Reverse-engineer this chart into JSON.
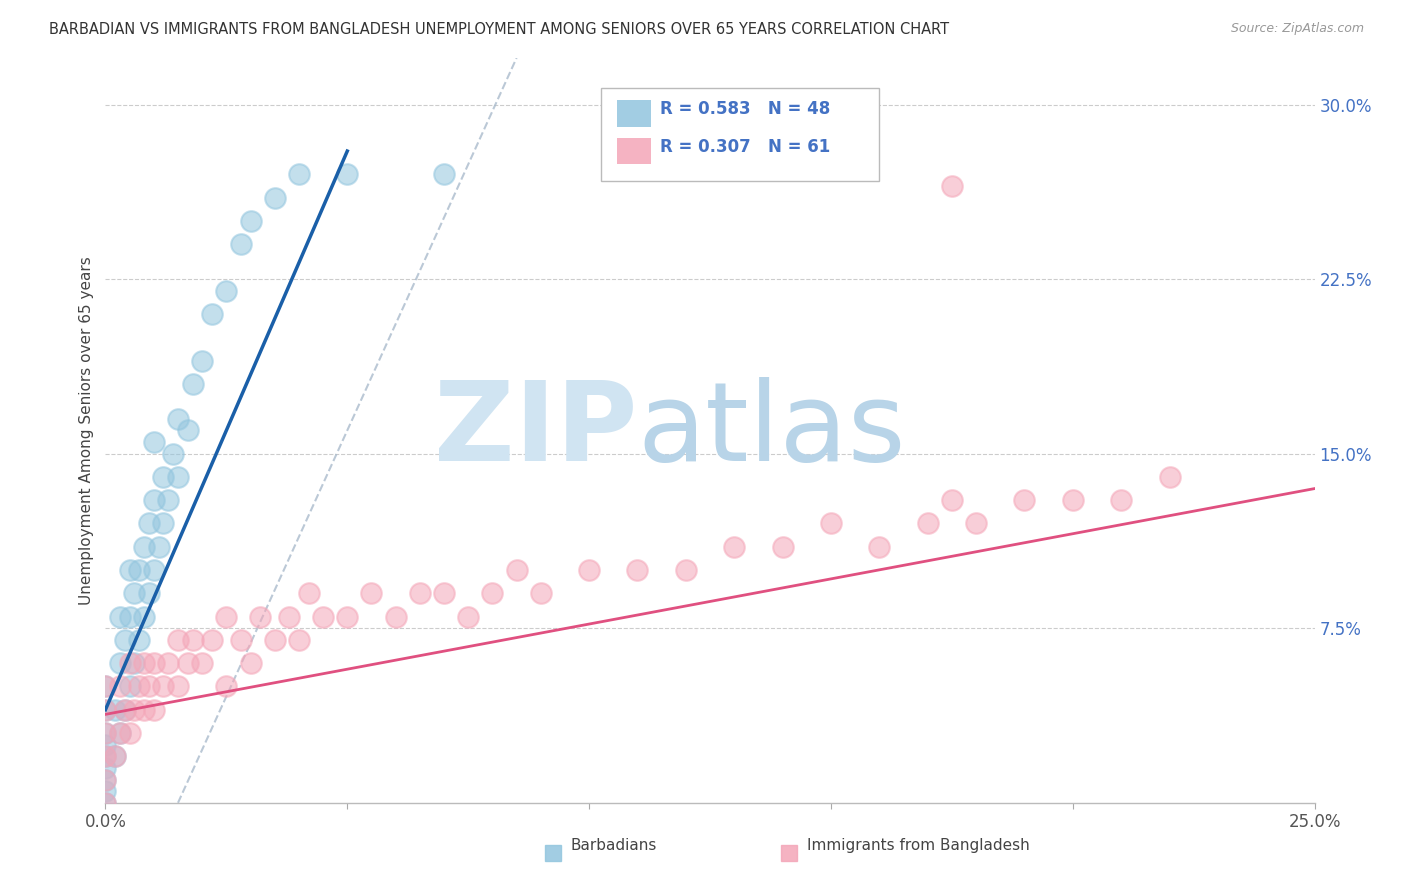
{
  "title": "BARBADIAN VS IMMIGRANTS FROM BANGLADESH UNEMPLOYMENT AMONG SENIORS OVER 65 YEARS CORRELATION CHART",
  "source": "Source: ZipAtlas.com",
  "ylabel": "Unemployment Among Seniors over 65 years",
  "xlim": [
    0.0,
    0.25
  ],
  "ylim": [
    0.0,
    0.32
  ],
  "color_blue": "#92c5de",
  "color_pink": "#f4a6b8",
  "line_blue": "#1a5fa8",
  "line_pink": "#e05080",
  "dash_color": "#aabbcc",
  "watermark_zip": "ZIP",
  "watermark_atlas": "atlas",
  "barbadian_x": [
    0.0,
    0.0,
    0.0,
    0.0,
    0.0,
    0.0,
    0.0,
    0.0,
    0.0,
    0.002,
    0.002,
    0.003,
    0.003,
    0.003,
    0.004,
    0.004,
    0.005,
    0.005,
    0.005,
    0.006,
    0.006,
    0.007,
    0.007,
    0.008,
    0.008,
    0.009,
    0.009,
    0.01,
    0.01,
    0.01,
    0.011,
    0.012,
    0.012,
    0.013,
    0.014,
    0.015,
    0.015,
    0.017,
    0.018,
    0.02,
    0.022,
    0.025,
    0.028,
    0.03,
    0.035,
    0.04,
    0.05,
    0.07
  ],
  "barbadian_y": [
    0.0,
    0.005,
    0.01,
    0.015,
    0.02,
    0.025,
    0.03,
    0.04,
    0.05,
    0.02,
    0.04,
    0.03,
    0.06,
    0.08,
    0.04,
    0.07,
    0.05,
    0.08,
    0.1,
    0.06,
    0.09,
    0.07,
    0.1,
    0.08,
    0.11,
    0.09,
    0.12,
    0.1,
    0.13,
    0.155,
    0.11,
    0.12,
    0.14,
    0.13,
    0.15,
    0.14,
    0.165,
    0.16,
    0.18,
    0.19,
    0.21,
    0.22,
    0.24,
    0.25,
    0.26,
    0.27,
    0.27,
    0.27
  ],
  "bangladesh_x": [
    0.0,
    0.0,
    0.0,
    0.0,
    0.0,
    0.0,
    0.002,
    0.003,
    0.003,
    0.004,
    0.005,
    0.005,
    0.006,
    0.007,
    0.008,
    0.008,
    0.009,
    0.01,
    0.01,
    0.012,
    0.013,
    0.015,
    0.015,
    0.017,
    0.018,
    0.02,
    0.022,
    0.025,
    0.025,
    0.028,
    0.03,
    0.032,
    0.035,
    0.038,
    0.04,
    0.042,
    0.045,
    0.05,
    0.055,
    0.06,
    0.065,
    0.07,
    0.075,
    0.08,
    0.085,
    0.09,
    0.1,
    0.11,
    0.12,
    0.13,
    0.14,
    0.15,
    0.16,
    0.17,
    0.175,
    0.18,
    0.19,
    0.2,
    0.21,
    0.22,
    0.175
  ],
  "bangladesh_y": [
    0.0,
    0.01,
    0.02,
    0.03,
    0.04,
    0.05,
    0.02,
    0.03,
    0.05,
    0.04,
    0.03,
    0.06,
    0.04,
    0.05,
    0.04,
    0.06,
    0.05,
    0.04,
    0.06,
    0.05,
    0.06,
    0.05,
    0.07,
    0.06,
    0.07,
    0.06,
    0.07,
    0.05,
    0.08,
    0.07,
    0.06,
    0.08,
    0.07,
    0.08,
    0.07,
    0.09,
    0.08,
    0.08,
    0.09,
    0.08,
    0.09,
    0.09,
    0.08,
    0.09,
    0.1,
    0.09,
    0.1,
    0.1,
    0.1,
    0.11,
    0.11,
    0.12,
    0.11,
    0.12,
    0.13,
    0.12,
    0.13,
    0.13,
    0.13,
    0.14,
    0.265
  ],
  "blue_line_x0": 0.0,
  "blue_line_y0": 0.04,
  "blue_line_x1": 0.05,
  "blue_line_y1": 0.28,
  "pink_line_x0": 0.0,
  "pink_line_y0": 0.038,
  "pink_line_x1": 0.25,
  "pink_line_y1": 0.135,
  "dash_line_x0": 0.015,
  "dash_line_y0": 0.0,
  "dash_line_x1": 0.085,
  "dash_line_y1": 0.32
}
